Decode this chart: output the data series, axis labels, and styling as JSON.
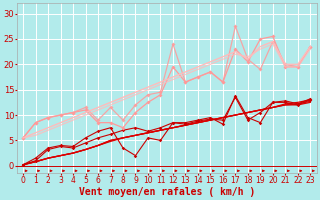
{
  "xlabel": "Vent moyen/en rafales ( km/h )",
  "bg_color": "#b2ebeb",
  "grid_color": "#c8e8e8",
  "xlim": [
    -0.5,
    23.5
  ],
  "ylim": [
    -1.5,
    32
  ],
  "yticks": [
    0,
    5,
    10,
    15,
    20,
    25,
    30
  ],
  "xticks": [
    0,
    1,
    2,
    3,
    4,
    5,
    6,
    7,
    8,
    9,
    10,
    11,
    12,
    13,
    14,
    15,
    16,
    17,
    18,
    19,
    20,
    21,
    22,
    23
  ],
  "lines": [
    {
      "x": [
        0,
        1,
        2,
        3,
        4,
        5,
        6,
        7,
        8,
        9,
        10,
        11,
        12,
        13,
        14,
        15,
        16,
        17,
        18,
        19,
        20,
        21,
        22,
        23
      ],
      "y": [
        0.2,
        0.8,
        1.5,
        2.0,
        2.5,
        3.2,
        4.0,
        4.8,
        5.5,
        6.0,
        6.5,
        7.0,
        7.5,
        8.0,
        8.5,
        9.0,
        9.5,
        10.0,
        10.5,
        11.0,
        11.5,
        12.0,
        12.0,
        12.5
      ],
      "color": "#dd0000",
      "lw": 0.9,
      "marker": null,
      "ms": 0,
      "alpha": 1.0
    },
    {
      "x": [
        0,
        1,
        2,
        3,
        4,
        5,
        6,
        7,
        8,
        9,
        10,
        11,
        12,
        13,
        14,
        15,
        16,
        17,
        18,
        19,
        20,
        21,
        22,
        23
      ],
      "y": [
        0.2,
        0.8,
        1.5,
        2.0,
        2.5,
        3.2,
        4.0,
        5.0,
        5.5,
        6.0,
        6.5,
        7.0,
        7.5,
        8.0,
        8.5,
        9.0,
        9.5,
        10.0,
        10.5,
        11.0,
        11.5,
        12.0,
        12.2,
        12.7
      ],
      "color": "#dd0000",
      "lw": 0.9,
      "marker": null,
      "ms": 0,
      "alpha": 1.0
    },
    {
      "x": [
        0,
        1,
        2,
        3,
        4,
        5,
        6,
        7,
        8,
        9,
        10,
        11,
        12,
        13,
        14,
        15,
        16,
        17,
        18,
        19,
        20,
        21,
        22,
        23
      ],
      "y": [
        0.2,
        0.8,
        1.5,
        2.0,
        2.5,
        3.2,
        4.0,
        5.0,
        5.5,
        6.0,
        6.5,
        7.0,
        7.5,
        8.0,
        8.5,
        9.0,
        9.5,
        10.0,
        10.5,
        11.0,
        11.5,
        12.2,
        12.5,
        13.0
      ],
      "color": "#dd0000",
      "lw": 0.9,
      "marker": null,
      "ms": 0,
      "alpha": 1.0
    },
    {
      "x": [
        0,
        1,
        2,
        3,
        4,
        5,
        6,
        7,
        8,
        9,
        10,
        11,
        12,
        13,
        14,
        15,
        16,
        17,
        18,
        19,
        20,
        21,
        22,
        23
      ],
      "y": [
        0.2,
        1.0,
        3.2,
        3.8,
        3.5,
        4.5,
        5.5,
        6.2,
        7.0,
        7.5,
        6.8,
        7.5,
        8.5,
        8.2,
        8.8,
        9.2,
        9.0,
        13.5,
        9.0,
        10.5,
        12.5,
        12.5,
        12.0,
        13.0
      ],
      "color": "#cc0000",
      "lw": 0.8,
      "marker": "D",
      "ms": 1.8,
      "alpha": 1.0
    },
    {
      "x": [
        0,
        1,
        2,
        3,
        4,
        5,
        6,
        7,
        8,
        9,
        10,
        11,
        12,
        13,
        14,
        15,
        16,
        17,
        18,
        19,
        20,
        21,
        22,
        23
      ],
      "y": [
        0.2,
        1.5,
        3.5,
        4.0,
        3.8,
        5.5,
        6.8,
        7.5,
        3.5,
        2.0,
        5.5,
        5.0,
        8.5,
        8.5,
        9.0,
        9.5,
        8.2,
        13.8,
        9.5,
        8.5,
        12.5,
        12.8,
        12.2,
        13.2
      ],
      "color": "#cc0000",
      "lw": 0.8,
      "marker": "D",
      "ms": 1.8,
      "alpha": 1.0
    },
    {
      "x": [
        0,
        1,
        2,
        3,
        4,
        5,
        6,
        7,
        8,
        9,
        10,
        11,
        12,
        13,
        14,
        15,
        16,
        17,
        18,
        19,
        20,
        21,
        22,
        23
      ],
      "y": [
        5.5,
        8.5,
        9.5,
        10.0,
        10.5,
        11.0,
        8.5,
        8.5,
        7.5,
        10.5,
        12.5,
        14.0,
        19.5,
        16.5,
        17.5,
        18.5,
        16.5,
        23.0,
        20.5,
        25.0,
        25.5,
        19.5,
        19.5,
        23.5
      ],
      "color": "#ff9999",
      "lw": 0.9,
      "marker": "D",
      "ms": 2.0,
      "alpha": 1.0
    },
    {
      "x": [
        0,
        1,
        2,
        3,
        4,
        5,
        6,
        7,
        8,
        9,
        10,
        11,
        12,
        13,
        14,
        15,
        16,
        17,
        18,
        19,
        20,
        21,
        22,
        23
      ],
      "y": [
        5.5,
        8.5,
        9.5,
        10.0,
        10.5,
        11.5,
        9.0,
        11.5,
        9.0,
        12.0,
        14.0,
        14.5,
        24.0,
        16.5,
        17.5,
        18.5,
        16.5,
        27.5,
        21.0,
        19.0,
        24.5,
        20.0,
        19.5,
        23.5
      ],
      "color": "#ff9999",
      "lw": 0.9,
      "marker": "D",
      "ms": 2.0,
      "alpha": 0.85
    },
    {
      "x": [
        0,
        1,
        2,
        3,
        4,
        5,
        6,
        7,
        8,
        9,
        10,
        11,
        12,
        13,
        14,
        15,
        16,
        17,
        18,
        19,
        20,
        21,
        22,
        23
      ],
      "y": [
        5.5,
        6.5,
        7.5,
        8.5,
        9.5,
        10.5,
        11.5,
        12.5,
        13.5,
        14.5,
        15.5,
        16.5,
        17.5,
        18.5,
        19.5,
        20.5,
        21.5,
        22.5,
        21.0,
        23.5,
        24.5,
        20.0,
        20.0,
        23.5
      ],
      "color": "#ffbbbb",
      "lw": 1.0,
      "marker": null,
      "ms": 0,
      "alpha": 1.0
    },
    {
      "x": [
        0,
        1,
        2,
        3,
        4,
        5,
        6,
        7,
        8,
        9,
        10,
        11,
        12,
        13,
        14,
        15,
        16,
        17,
        18,
        19,
        20,
        21,
        22,
        23
      ],
      "y": [
        5.5,
        6.0,
        7.0,
        8.0,
        9.0,
        10.0,
        11.0,
        12.0,
        13.0,
        14.0,
        15.0,
        16.0,
        17.0,
        18.0,
        19.0,
        20.0,
        21.0,
        22.0,
        21.5,
        23.0,
        24.0,
        19.5,
        19.5,
        23.0
      ],
      "color": "#ffbbbb",
      "lw": 0.9,
      "marker": null,
      "ms": 0,
      "alpha": 0.8
    }
  ],
  "arrow_color": "#cc0000",
  "xlabel_color": "#cc0000",
  "xlabel_fontsize": 7,
  "ytick_fontsize": 6,
  "xtick_fontsize": 5.5
}
